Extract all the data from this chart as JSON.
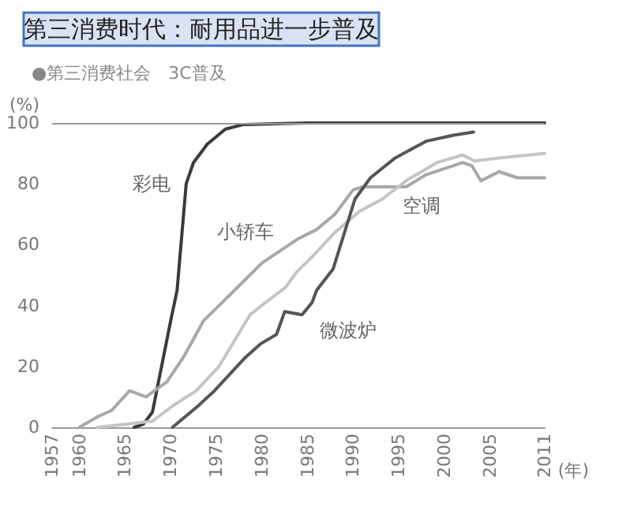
{
  "chart_data": {
    "type": "line",
    "title": "第三消费时代：耐用品进一步普及",
    "subtitle": "●第三消费社会　3C普及",
    "xlabel": "(年)",
    "ylabel": "(%)",
    "xlim": [
      1957,
      2011
    ],
    "xticks": [
      1957,
      1960,
      1965,
      1970,
      1975,
      1980,
      1985,
      1990,
      1995,
      2000,
      2005,
      2011
    ],
    "ylim": [
      0,
      100
    ],
    "yticks": [
      0,
      20,
      40,
      60,
      80,
      100
    ],
    "grid": false,
    "legend": false,
    "marker": "none",
    "line_style": "solid",
    "ref_lines": [
      {
        "axis": "y",
        "value": 100,
        "color": "#999999"
      }
    ],
    "series": [
      {
        "name": "彩电",
        "color": "#3a3a3a",
        "x": [
          1966,
          1967,
          1968,
          1969,
          1970,
          1970.7,
          1971.7,
          1972.5,
          1974,
          1976,
          1978,
          1985,
          1995,
          2005,
          2011
        ],
        "values": [
          0,
          1,
          5,
          20,
          35,
          45,
          80,
          87,
          93,
          98,
          99.5,
          100,
          100,
          100,
          100
        ]
      },
      {
        "name": "小轿车",
        "color": "#a8a8a8",
        "x": [
          1960,
          1962,
          1963.5,
          1965.5,
          1967.3,
          1969.6,
          1971.4,
          1973.6,
          1975.3,
          1978,
          1980,
          1982,
          1984,
          1986,
          1988,
          1990,
          1991,
          1995.8,
          1998,
          2001,
          2002,
          2003,
          2004,
          2006,
          2008,
          2011
        ],
        "values": [
          0,
          3.5,
          5.5,
          12,
          10,
          15,
          23,
          35,
          40,
          48,
          54,
          58,
          62,
          65,
          70,
          78,
          79,
          79,
          83,
          86,
          87,
          86,
          81,
          84,
          82,
          82
        ]
      },
      {
        "name": "空调",
        "color": "#c4c4c4",
        "x": [
          1962,
          1965,
          1968,
          1970.2,
          1972.8,
          1975.3,
          1978.7,
          1980.4,
          1982.6,
          1983.8,
          1985.5,
          1988,
          1990.7,
          1993.2,
          1995.8,
          1999.2,
          2002,
          2003.3,
          2006,
          2011
        ],
        "values": [
          0,
          1,
          2,
          7,
          12,
          20,
          37,
          41,
          46,
          51,
          56,
          64,
          71,
          75,
          81,
          87,
          89.5,
          87.5,
          88.5,
          90
        ]
      },
      {
        "name": "微波炉",
        "color": "#555555",
        "x": [
          1970.2,
          1973,
          1974.8,
          1976.5,
          1978.2,
          1979.9,
          1981.6,
          1982.5,
          1984.4,
          1985.5,
          1986,
          1987.8,
          1990.2,
          1991.9,
          1994.6,
          1998,
          2001,
          2003.2
        ],
        "values": [
          0,
          7,
          12,
          17.5,
          23,
          27.5,
          30.5,
          38,
          37,
          41,
          45,
          52,
          75,
          82,
          88.5,
          94,
          96,
          97
        ]
      }
    ]
  }
}
